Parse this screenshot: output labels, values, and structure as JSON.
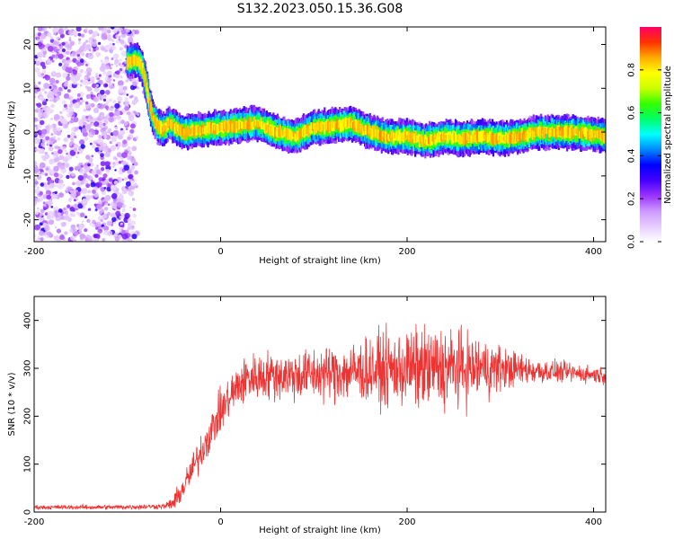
{
  "title": "S132.2023.050.15.36.G08",
  "chart_data": [
    {
      "type": "heatmap",
      "xlabel": "Height of straight line (km)",
      "ylabel": "Frequency (Hz)",
      "xlim": [
        -200,
        413
      ],
      "ylim": [
        -25,
        24
      ],
      "x_ticks": [
        -200,
        0,
        200,
        400
      ],
      "y_ticks": [
        -20,
        -10,
        0,
        10,
        20
      ],
      "colorbar": {
        "label": "Normalized spectral amplitude",
        "range": [
          0,
          1
        ],
        "ticks": [
          0.0,
          0.2,
          0.4,
          0.6,
          0.8
        ],
        "colormap": [
          "#ffffff",
          "#e6ccff",
          "#cc99ff",
          "#9933ff",
          "#4400ff",
          "#0000ff",
          "#0088ff",
          "#00ffff",
          "#00ff66",
          "#33ff00",
          "#ccff00",
          "#ffff00",
          "#ffaa00",
          "#ff3300",
          "#ff0066"
        ]
      },
      "ridge": {
        "x": [
          -100,
          -92,
          -85,
          -80,
          -76,
          -72,
          -68,
          -62,
          -55,
          -40,
          -20,
          0,
          20,
          40,
          60,
          80,
          100,
          120,
          140,
          160,
          180,
          200,
          220,
          240,
          260,
          280,
          300,
          320,
          340,
          360,
          380,
          400,
          413
        ],
        "y": [
          16,
          16.5,
          15.5,
          11,
          6,
          3,
          1.5,
          0.5,
          2,
          0,
          0.5,
          1,
          1.5,
          2,
          0,
          -1,
          1,
          1.5,
          2,
          0,
          -1,
          -1,
          -2,
          -1,
          -1.5,
          -1,
          -1.5,
          -1,
          0,
          0,
          0,
          -0.5,
          -1
        ]
      },
      "noise_region_x": [
        -200,
        -85
      ]
    },
    {
      "type": "line",
      "xlabel": "Height of straight line (km)",
      "ylabel": "SNR (10 * v/v)",
      "xlim": [
        -200,
        413
      ],
      "ylim": [
        0,
        450
      ],
      "x_ticks": [
        -200,
        0,
        200,
        400
      ],
      "y_ticks": [
        0,
        100,
        200,
        300,
        400
      ],
      "series": [
        {
          "color": "#ee3333",
          "mean": {
            "x": [
              -200,
              -120,
              -60,
              -50,
              -40,
              -30,
              -20,
              -10,
              0,
              10,
              20,
              30,
              50,
              80,
              120,
              160,
              200,
              240,
              280,
              300,
              340,
              380,
              413
            ],
            "y": [
              10,
              10,
              12,
              20,
              50,
              90,
              130,
              170,
              210,
              240,
              265,
              280,
              285,
              285,
              290,
              295,
              300,
              300,
              300,
              300,
              295,
              290,
              285
            ]
          },
          "spread": {
            "x": [
              -200,
              -60,
              -40,
              -20,
              0,
              20,
              40,
              100,
              150,
              200,
              240,
              280,
              320,
              360,
              413
            ],
            "y": [
              4,
              5,
              25,
              35,
              40,
              45,
              45,
              50,
              60,
              75,
              80,
              60,
              30,
              20,
              15
            ]
          }
        }
      ]
    }
  ]
}
